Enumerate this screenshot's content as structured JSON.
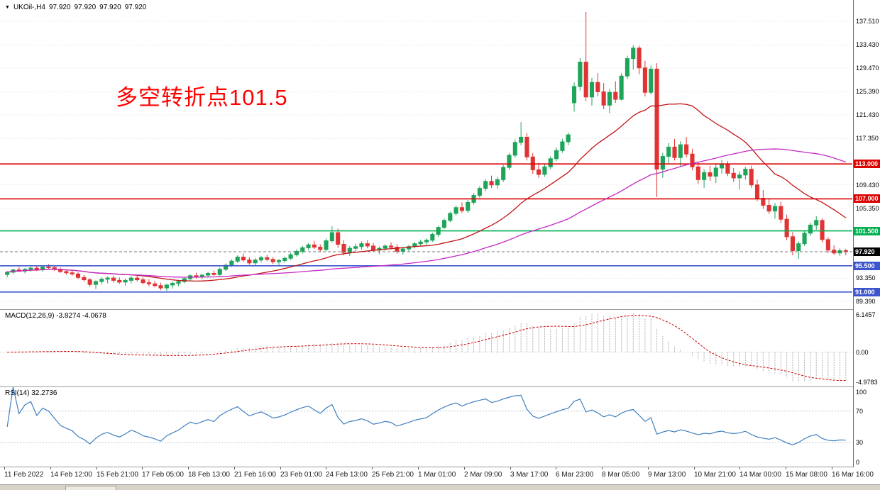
{
  "title": {
    "symbol_period": "UKOil-,H4",
    "open": "97.920",
    "high": "97.920",
    "low": "97.920",
    "close": "97.920"
  },
  "chart_data": [
    {
      "type": "candlestick",
      "symbol": "UKOil",
      "timeframe": "H4",
      "annotation": {
        "text": "多空转折点101.5",
        "color": "#ff0000"
      },
      "ylim": [
        88.05,
        141.165
      ],
      "y_axis_labels": [
        "137.510",
        "133.430",
        "129.470",
        "125.390",
        "121.430",
        "117.350",
        "109.430",
        "105.350",
        "93.350",
        "89.390"
      ],
      "x_axis_labels": [
        "11 Feb 2022",
        "14 Feb 12:00",
        "15 Feb 21:00",
        "17 Feb 05:00",
        "18 Feb 13:00",
        "21 Feb 16:00",
        "23 Feb 01:00",
        "24 Feb 13:00",
        "25 Feb 21:00",
        "1 Mar 01:00",
        "2 Mar 09:00",
        "3 Mar 17:00",
        "6 Mar 23:00",
        "8 Mar 05:00",
        "9 Mar 13:00",
        "10 Mar 21:00",
        "14 Mar 00:00",
        "15 Mar 08:00",
        "16 Mar 16:00"
      ],
      "horizontal_lines": [
        {
          "value": 113.0,
          "label": "113.000",
          "color": "#dd0000"
        },
        {
          "value": 107.0,
          "label": "107.000",
          "color": "#dd0000"
        },
        {
          "value": 101.5,
          "label": "101.500",
          "color": "#00b050"
        },
        {
          "value": 95.5,
          "label": "95.500",
          "color": "#3c55cc"
        },
        {
          "value": 91.0,
          "label": "91.000",
          "color": "#3c55cc"
        }
      ],
      "current_price": {
        "value": 97.92,
        "label": "97.920",
        "bg": "#000000"
      },
      "moving_averages": [
        {
          "name": "ma-fast",
          "period": 21,
          "color": "#c01414"
        },
        {
          "name": "ma-slow",
          "period": 55,
          "color": "#c428c4"
        }
      ],
      "up_color": "#1ea55a",
      "down_color": "#e03434",
      "grid_color": "#dcdcdc",
      "candles": [
        [
          94.0,
          94.6,
          93.5,
          94.4
        ],
        [
          94.4,
          95.0,
          94.1,
          94.8
        ],
        [
          94.8,
          95.3,
          94.4,
          94.6
        ],
        [
          94.6,
          95.1,
          94.2,
          94.9
        ],
        [
          94.9,
          95.4,
          94.5,
          95.1
        ],
        [
          95.1,
          95.5,
          94.6,
          94.8
        ],
        [
          94.8,
          95.6,
          94.5,
          95.3
        ],
        [
          95.3,
          95.8,
          94.9,
          95.2
        ],
        [
          95.2,
          95.5,
          94.6,
          94.9
        ],
        [
          94.9,
          95.2,
          94.3,
          94.5
        ],
        [
          94.5,
          94.9,
          94.0,
          94.3
        ],
        [
          94.3,
          94.7,
          93.8,
          94.1
        ],
        [
          94.1,
          94.4,
          93.2,
          93.5
        ],
        [
          93.5,
          93.9,
          92.8,
          93.1
        ],
        [
          93.1,
          93.4,
          91.9,
          92.3
        ],
        [
          92.3,
          93.0,
          91.5,
          92.8
        ],
        [
          92.8,
          93.5,
          92.3,
          93.2
        ],
        [
          93.2,
          93.7,
          92.5,
          93.4
        ],
        [
          93.4,
          93.8,
          92.6,
          93.0
        ],
        [
          93.0,
          93.5,
          92.4,
          92.7
        ],
        [
          92.7,
          93.3,
          92.1,
          93.0
        ],
        [
          93.0,
          93.7,
          92.5,
          93.4
        ],
        [
          93.4,
          93.9,
          92.8,
          93.1
        ],
        [
          93.1,
          93.5,
          92.3,
          92.6
        ],
        [
          92.6,
          93.2,
          92.0,
          92.4
        ],
        [
          92.4,
          92.9,
          91.8,
          92.1
        ],
        [
          92.1,
          92.6,
          91.3,
          91.7
        ],
        [
          91.7,
          92.4,
          91.2,
          92.2
        ],
        [
          92.2,
          92.8,
          91.6,
          92.5
        ],
        [
          92.5,
          93.1,
          92.0,
          92.8
        ],
        [
          92.8,
          93.6,
          92.5,
          93.3
        ],
        [
          93.3,
          94.0,
          93.0,
          93.8
        ],
        [
          93.8,
          94.3,
          93.3,
          93.6
        ],
        [
          93.6,
          94.1,
          93.2,
          93.9
        ],
        [
          93.9,
          94.5,
          93.5,
          94.2
        ],
        [
          94.2,
          94.7,
          93.8,
          94.0
        ],
        [
          94.0,
          95.2,
          93.8,
          94.9
        ],
        [
          94.9,
          95.9,
          94.6,
          95.6
        ],
        [
          95.6,
          96.6,
          95.3,
          96.3
        ],
        [
          96.3,
          97.3,
          96.0,
          97.0
        ],
        [
          97.0,
          97.6,
          96.2,
          96.5
        ],
        [
          96.5,
          97.0,
          95.7,
          96.0
        ],
        [
          96.0,
          96.8,
          95.4,
          96.5
        ],
        [
          96.5,
          97.2,
          96.1,
          96.9
        ],
        [
          96.9,
          97.4,
          96.3,
          96.6
        ],
        [
          96.6,
          97.0,
          95.8,
          96.2
        ],
        [
          96.2,
          96.7,
          95.5,
          96.4
        ],
        [
          96.4,
          97.1,
          96.0,
          96.8
        ],
        [
          96.8,
          97.7,
          96.5,
          97.4
        ],
        [
          97.4,
          98.3,
          97.1,
          98.0
        ],
        [
          98.0,
          98.9,
          97.6,
          98.6
        ],
        [
          98.6,
          99.4,
          98.2,
          99.1
        ],
        [
          99.1,
          99.8,
          98.4,
          98.7
        ],
        [
          98.7,
          99.2,
          97.9,
          98.3
        ],
        [
          98.3,
          100.2,
          98.0,
          99.8
        ],
        [
          99.8,
          102.3,
          99.5,
          101.2
        ],
        [
          101.2,
          101.9,
          98.6,
          99.2
        ],
        [
          99.2,
          99.9,
          97.3,
          97.8
        ],
        [
          97.8,
          98.9,
          97.2,
          98.5
        ],
        [
          98.5,
          99.3,
          98.0,
          98.8
        ],
        [
          98.8,
          99.7,
          98.3,
          99.3
        ],
        [
          99.3,
          99.9,
          98.5,
          98.9
        ],
        [
          98.9,
          99.4,
          97.9,
          98.2
        ],
        [
          98.2,
          98.8,
          97.5,
          98.5
        ],
        [
          98.5,
          99.2,
          98.1,
          98.9
        ],
        [
          98.9,
          99.5,
          98.4,
          98.7
        ],
        [
          98.7,
          99.2,
          97.6,
          98.0
        ],
        [
          98.0,
          98.7,
          97.4,
          98.4
        ],
        [
          98.4,
          99.1,
          98.0,
          98.8
        ],
        [
          98.8,
          99.6,
          98.5,
          99.3
        ],
        [
          99.3,
          100.0,
          98.9,
          99.6
        ],
        [
          99.6,
          100.2,
          99.1,
          99.9
        ],
        [
          99.9,
          101.2,
          99.6,
          100.9
        ],
        [
          100.9,
          102.4,
          100.5,
          102.1
        ],
        [
          102.1,
          103.6,
          101.8,
          103.3
        ],
        [
          103.3,
          104.8,
          103.0,
          104.5
        ],
        [
          104.5,
          105.9,
          104.1,
          105.5
        ],
        [
          105.5,
          106.4,
          104.6,
          105.0
        ],
        [
          105.0,
          106.8,
          104.6,
          106.4
        ],
        [
          106.4,
          108.0,
          106.0,
          107.6
        ],
        [
          107.6,
          109.2,
          107.2,
          108.8
        ],
        [
          108.8,
          110.4,
          108.3,
          110.0
        ],
        [
          110.0,
          111.0,
          108.9,
          109.4
        ],
        [
          109.4,
          110.8,
          108.7,
          110.3
        ],
        [
          110.3,
          112.8,
          109.9,
          112.4
        ],
        [
          112.4,
          114.9,
          112.0,
          114.5
        ],
        [
          114.5,
          117.2,
          114.1,
          116.7
        ],
        [
          116.7,
          120.2,
          116.2,
          117.6
        ],
        [
          117.6,
          118.3,
          113.6,
          114.2
        ],
        [
          114.2,
          114.9,
          111.3,
          112.0
        ],
        [
          112.0,
          113.2,
          110.6,
          111.2
        ],
        [
          111.2,
          112.9,
          110.8,
          112.5
        ],
        [
          112.5,
          114.3,
          112.1,
          113.9
        ],
        [
          113.9,
          115.8,
          113.5,
          115.3
        ],
        [
          115.3,
          117.3,
          114.9,
          116.8
        ],
        [
          116.8,
          118.4,
          116.2,
          118.0
        ],
        [
          123.5,
          127.0,
          122.0,
          126.3
        ],
        [
          126.3,
          131.2,
          125.6,
          130.5
        ],
        [
          130.5,
          139.1,
          123.8,
          124.5
        ],
        [
          124.5,
          127.8,
          123.0,
          127.0
        ],
        [
          127.0,
          128.6,
          124.6,
          125.4
        ],
        [
          125.4,
          126.9,
          122.4,
          123.1
        ],
        [
          123.1,
          125.9,
          121.7,
          125.3
        ],
        [
          125.3,
          127.2,
          123.5,
          124.1
        ],
        [
          124.1,
          128.6,
          123.9,
          128.1
        ],
        [
          128.1,
          131.6,
          127.6,
          131.1
        ],
        [
          131.1,
          133.4,
          129.2,
          132.9
        ],
        [
          132.9,
          133.3,
          128.4,
          129.5
        ],
        [
          129.5,
          130.7,
          124.6,
          125.3
        ],
        [
          125.3,
          129.9,
          124.9,
          129.3
        ],
        [
          129.3,
          130.3,
          107.3,
          112.1
        ],
        [
          112.1,
          114.9,
          110.6,
          114.3
        ],
        [
          114.3,
          116.6,
          113.1,
          115.9
        ],
        [
          115.9,
          117.3,
          113.6,
          114.1
        ],
        [
          114.1,
          116.9,
          112.6,
          116.3
        ],
        [
          116.3,
          117.6,
          114.1,
          114.7
        ],
        [
          114.7,
          115.6,
          111.9,
          112.5
        ],
        [
          112.5,
          113.3,
          109.6,
          110.3
        ],
        [
          110.3,
          112.1,
          108.9,
          111.5
        ],
        [
          111.5,
          112.7,
          110.1,
          110.9
        ],
        [
          110.9,
          112.9,
          109.7,
          112.3
        ],
        [
          112.3,
          113.7,
          111.3,
          113.0
        ],
        [
          113.0,
          113.5,
          110.9,
          111.4
        ],
        [
          111.4,
          112.3,
          109.9,
          110.6
        ],
        [
          110.6,
          111.7,
          108.6,
          111.1
        ],
        [
          111.1,
          112.5,
          110.3,
          112.1
        ],
        [
          112.1,
          112.7,
          108.9,
          109.4
        ],
        [
          109.4,
          110.3,
          106.6,
          107.1
        ],
        [
          107.1,
          108.5,
          105.3,
          105.9
        ],
        [
          105.9,
          107.1,
          104.4,
          104.9
        ],
        [
          104.9,
          106.3,
          103.6,
          105.7
        ],
        [
          105.7,
          106.5,
          102.9,
          103.5
        ],
        [
          103.5,
          104.3,
          99.9,
          100.5
        ],
        [
          100.5,
          101.3,
          97.3,
          98.1
        ],
        [
          98.1,
          99.7,
          96.7,
          99.3
        ],
        [
          99.3,
          101.5,
          98.9,
          101.1
        ],
        [
          101.1,
          102.9,
          100.6,
          102.5
        ],
        [
          102.5,
          104.0,
          101.7,
          103.3
        ],
        [
          103.3,
          103.7,
          99.5,
          100.0
        ],
        [
          100.0,
          100.4,
          97.7,
          98.2
        ],
        [
          98.2,
          99.0,
          97.4,
          97.7
        ],
        [
          97.7,
          98.5,
          97.2,
          98.1
        ],
        [
          98.1,
          98.4,
          97.3,
          97.92
        ]
      ]
    },
    {
      "type": "macd",
      "label": "MACD(12,26,9) -3.8274 -4.0678",
      "params": [
        12,
        26,
        9
      ],
      "values": [
        -3.8274,
        -4.0678
      ],
      "ylim": [
        -4.9783,
        6.1457
      ],
      "y_axis_labels": [
        "6.1457",
        "0.00",
        "-4.9783"
      ],
      "histogram_color": "#b2b2b2",
      "signal_color": "#cc0000"
    },
    {
      "type": "rsi",
      "label": "RSI(14) 32.2736",
      "period": 14,
      "value": 32.2736,
      "levels": [
        70,
        30
      ],
      "y_axis_labels": [
        "100",
        "70",
        "30",
        "0"
      ],
      "line_color": "#3f7fbf",
      "level_color": "#b9c9d9"
    }
  ]
}
